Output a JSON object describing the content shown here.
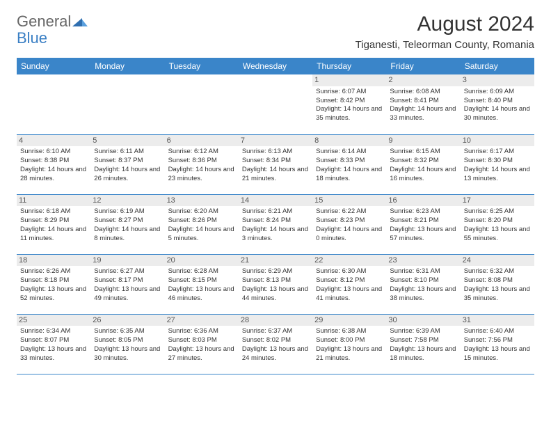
{
  "brand": {
    "part1": "General",
    "part2": "Blue"
  },
  "title": "August 2024",
  "location": "Tiganesti, Teleorman County, Romania",
  "colors": {
    "header_bg": "#3a85c9",
    "header_fg": "#ffffff",
    "daynum_bg": "#ececec",
    "border": "#3a85c9",
    "text": "#333333"
  },
  "dayHeaders": [
    "Sunday",
    "Monday",
    "Tuesday",
    "Wednesday",
    "Thursday",
    "Friday",
    "Saturday"
  ],
  "weeks": [
    [
      null,
      null,
      null,
      null,
      {
        "n": "1",
        "sr": "6:07 AM",
        "ss": "8:42 PM",
        "dl": "14 hours and 35 minutes."
      },
      {
        "n": "2",
        "sr": "6:08 AM",
        "ss": "8:41 PM",
        "dl": "14 hours and 33 minutes."
      },
      {
        "n": "3",
        "sr": "6:09 AM",
        "ss": "8:40 PM",
        "dl": "14 hours and 30 minutes."
      }
    ],
    [
      {
        "n": "4",
        "sr": "6:10 AM",
        "ss": "8:38 PM",
        "dl": "14 hours and 28 minutes."
      },
      {
        "n": "5",
        "sr": "6:11 AM",
        "ss": "8:37 PM",
        "dl": "14 hours and 26 minutes."
      },
      {
        "n": "6",
        "sr": "6:12 AM",
        "ss": "8:36 PM",
        "dl": "14 hours and 23 minutes."
      },
      {
        "n": "7",
        "sr": "6:13 AM",
        "ss": "8:34 PM",
        "dl": "14 hours and 21 minutes."
      },
      {
        "n": "8",
        "sr": "6:14 AM",
        "ss": "8:33 PM",
        "dl": "14 hours and 18 minutes."
      },
      {
        "n": "9",
        "sr": "6:15 AM",
        "ss": "8:32 PM",
        "dl": "14 hours and 16 minutes."
      },
      {
        "n": "10",
        "sr": "6:17 AM",
        "ss": "8:30 PM",
        "dl": "14 hours and 13 minutes."
      }
    ],
    [
      {
        "n": "11",
        "sr": "6:18 AM",
        "ss": "8:29 PM",
        "dl": "14 hours and 11 minutes."
      },
      {
        "n": "12",
        "sr": "6:19 AM",
        "ss": "8:27 PM",
        "dl": "14 hours and 8 minutes."
      },
      {
        "n": "13",
        "sr": "6:20 AM",
        "ss": "8:26 PM",
        "dl": "14 hours and 5 minutes."
      },
      {
        "n": "14",
        "sr": "6:21 AM",
        "ss": "8:24 PM",
        "dl": "14 hours and 3 minutes."
      },
      {
        "n": "15",
        "sr": "6:22 AM",
        "ss": "8:23 PM",
        "dl": "14 hours and 0 minutes."
      },
      {
        "n": "16",
        "sr": "6:23 AM",
        "ss": "8:21 PM",
        "dl": "13 hours and 57 minutes."
      },
      {
        "n": "17",
        "sr": "6:25 AM",
        "ss": "8:20 PM",
        "dl": "13 hours and 55 minutes."
      }
    ],
    [
      {
        "n": "18",
        "sr": "6:26 AM",
        "ss": "8:18 PM",
        "dl": "13 hours and 52 minutes."
      },
      {
        "n": "19",
        "sr": "6:27 AM",
        "ss": "8:17 PM",
        "dl": "13 hours and 49 minutes."
      },
      {
        "n": "20",
        "sr": "6:28 AM",
        "ss": "8:15 PM",
        "dl": "13 hours and 46 minutes."
      },
      {
        "n": "21",
        "sr": "6:29 AM",
        "ss": "8:13 PM",
        "dl": "13 hours and 44 minutes."
      },
      {
        "n": "22",
        "sr": "6:30 AM",
        "ss": "8:12 PM",
        "dl": "13 hours and 41 minutes."
      },
      {
        "n": "23",
        "sr": "6:31 AM",
        "ss": "8:10 PM",
        "dl": "13 hours and 38 minutes."
      },
      {
        "n": "24",
        "sr": "6:32 AM",
        "ss": "8:08 PM",
        "dl": "13 hours and 35 minutes."
      }
    ],
    [
      {
        "n": "25",
        "sr": "6:34 AM",
        "ss": "8:07 PM",
        "dl": "13 hours and 33 minutes."
      },
      {
        "n": "26",
        "sr": "6:35 AM",
        "ss": "8:05 PM",
        "dl": "13 hours and 30 minutes."
      },
      {
        "n": "27",
        "sr": "6:36 AM",
        "ss": "8:03 PM",
        "dl": "13 hours and 27 minutes."
      },
      {
        "n": "28",
        "sr": "6:37 AM",
        "ss": "8:02 PM",
        "dl": "13 hours and 24 minutes."
      },
      {
        "n": "29",
        "sr": "6:38 AM",
        "ss": "8:00 PM",
        "dl": "13 hours and 21 minutes."
      },
      {
        "n": "30",
        "sr": "6:39 AM",
        "ss": "7:58 PM",
        "dl": "13 hours and 18 minutes."
      },
      {
        "n": "31",
        "sr": "6:40 AM",
        "ss": "7:56 PM",
        "dl": "13 hours and 15 minutes."
      }
    ]
  ],
  "labels": {
    "sunrise": "Sunrise:",
    "sunset": "Sunset:",
    "daylight": "Daylight:"
  }
}
